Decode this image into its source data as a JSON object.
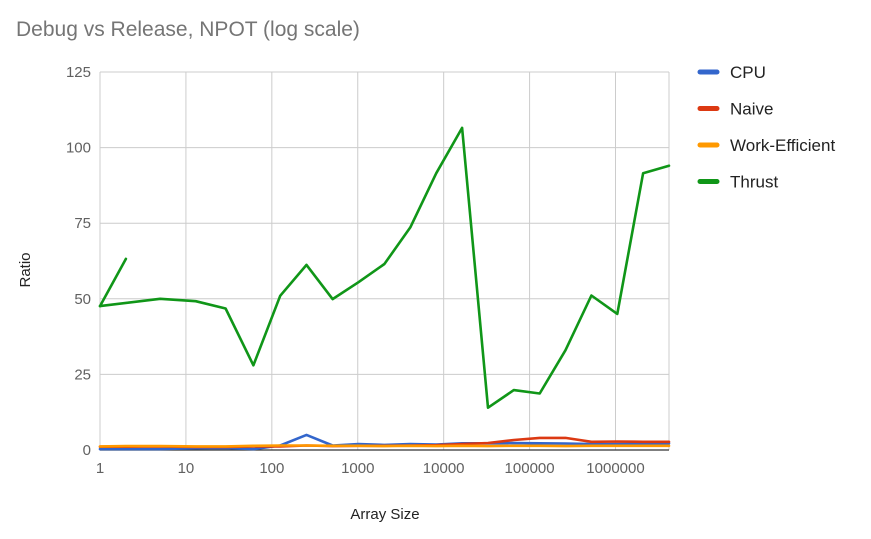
{
  "chart_data": {
    "type": "line",
    "title": "Debug vs Release, NPOT (log scale)",
    "xlabel": "Array Size",
    "ylabel": "Ratio",
    "x_scale": "log",
    "xlim": [
      1,
      4194304
    ],
    "ylim": [
      0,
      125
    ],
    "x_ticks": [
      1,
      10,
      100,
      1000,
      10000,
      100000,
      1000000
    ],
    "x_tick_labels": [
      "1",
      "10",
      "100",
      "1000",
      "10000",
      "100000",
      "1000000"
    ],
    "y_ticks": [
      0,
      25,
      50,
      75,
      100,
      125
    ],
    "y_tick_labels": [
      "0",
      "25",
      "50",
      "75",
      "100",
      "125"
    ],
    "grid": true,
    "legend_position": "right",
    "series": [
      {
        "name": "CPU",
        "color": "#3366cc",
        "x": [
          1,
          2,
          5,
          13,
          29,
          61,
          125,
          253,
          509,
          1021,
          2045,
          4093,
          8189,
          16381,
          32765,
          65533,
          131069,
          262141,
          524285,
          1048573,
          2097149,
          4194301
        ],
        "y": [
          0.3,
          0.3,
          0.3,
          0.6,
          0.7,
          0.3,
          1.5,
          5.0,
          1.5,
          2.0,
          1.7,
          2.0,
          1.8,
          2.2,
          2.2,
          2.3,
          2.2,
          2.1,
          2.0,
          2.0,
          2.1,
          2.2
        ]
      },
      {
        "name": "Naive",
        "color": "#dc3912",
        "x": [
          1,
          2,
          5,
          13,
          29,
          61,
          125,
          253,
          509,
          1021,
          2045,
          4093,
          8189,
          16381,
          32765,
          65533,
          131069,
          262141,
          524285,
          1048573,
          2097149,
          4194301
        ],
        "y": [
          1.1,
          1.1,
          1.2,
          1.0,
          1.0,
          1.2,
          1.2,
          1.5,
          1.3,
          1.4,
          1.4,
          1.5,
          1.6,
          2.0,
          2.3,
          3.3,
          4.0,
          4.0,
          2.7,
          2.8,
          2.7,
          2.7
        ]
      },
      {
        "name": "Work-Efficient",
        "color": "#ff9900",
        "x": [
          1,
          2,
          5,
          13,
          29,
          61,
          125,
          253,
          509,
          1021,
          2045,
          4093,
          8189,
          16381,
          32765,
          65533,
          131069,
          262141,
          524285,
          1048573,
          2097149,
          4194301
        ],
        "y": [
          1.2,
          1.3,
          1.3,
          1.2,
          1.2,
          1.4,
          1.5,
          1.5,
          1.4,
          1.4,
          1.3,
          1.4,
          1.3,
          1.4,
          1.3,
          1.4,
          1.4,
          1.3,
          1.4,
          1.4,
          1.4,
          1.4
        ]
      },
      {
        "name": "Thrust",
        "color": "#109618",
        "segments": [
          {
            "x": [
              1,
              2
            ],
            "y": [
              47.6,
              63.2
            ]
          },
          {
            "x": [
              1,
              5,
              13,
              29,
              61,
              125,
              253,
              509,
              1021,
              2045,
              4093,
              8189,
              16381,
              32765,
              65533,
              131069,
              262141,
              524285,
              1048573,
              2097149,
              4194301
            ],
            "y": [
              47.6,
              50.0,
              49.2,
              46.8,
              28.0,
              51.0,
              61.2,
              49.9,
              55.5,
              61.5,
              73.6,
              91.5,
              106.5,
              14.0,
              19.8,
              18.7,
              33.0,
              51.1,
              45.0,
              91.5,
              94.0
            ]
          }
        ]
      }
    ]
  }
}
